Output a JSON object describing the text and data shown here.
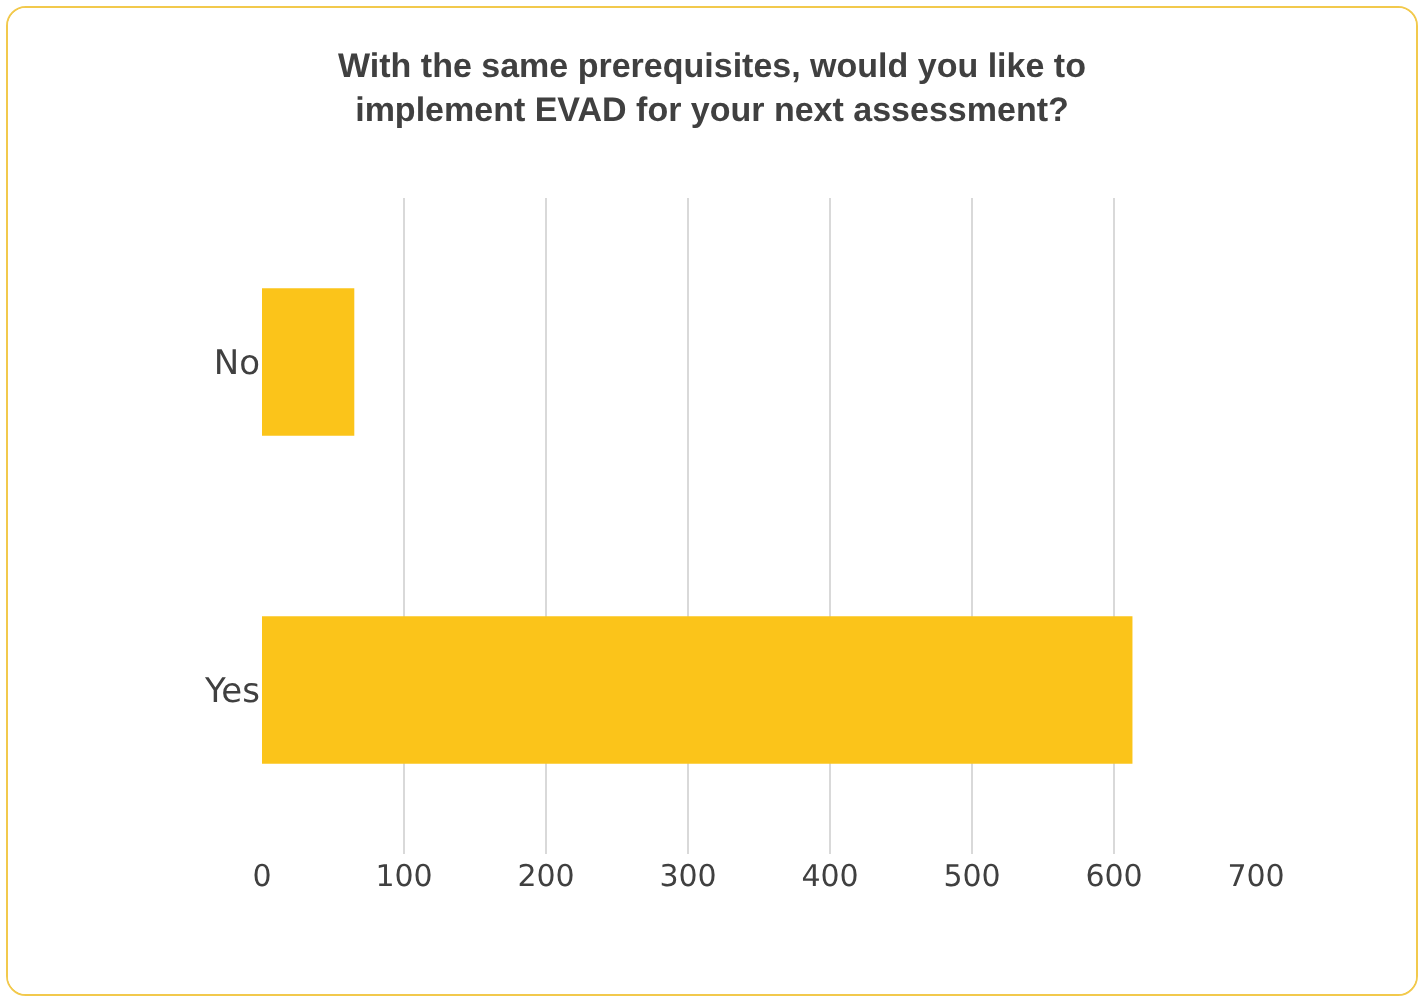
{
  "chart_data": {
    "type": "bar",
    "orientation": "horizontal",
    "title": "With the same prerequisites, would you like to implement EVAD for your next assessment?",
    "categories": [
      "No",
      "Yes"
    ],
    "values": [
      65,
      613
    ],
    "color": "#fbc41a",
    "xlim": [
      0,
      700
    ],
    "xticks": [
      0,
      100,
      200,
      300,
      400,
      500,
      600,
      700
    ],
    "grid": "x",
    "legend": false
  }
}
